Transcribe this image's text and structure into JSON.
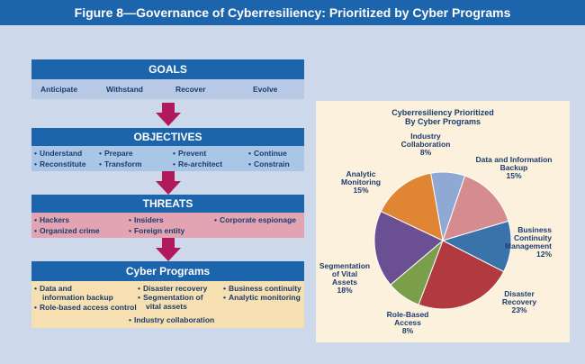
{
  "figure_title": "Figure 8—Governance of Cyberresiliency: Prioritized by Cyber Programs",
  "colors": {
    "header_blue": "#1c64ac",
    "goals_band": "#b7c9e4",
    "objectives_band": "#a9c6e6",
    "threats_band": "#e2a3b3",
    "programs_band": "#f6dfb0",
    "arrow": "#b2195b",
    "pie_panel": "#fbf1dd"
  },
  "goals": {
    "heading": "GOALS",
    "items": [
      "Anticipate",
      "Withstand",
      "Recover",
      "Evolve"
    ]
  },
  "objectives": {
    "heading": "OBJECTIVES",
    "items": [
      "Understand",
      "Prepare",
      "Prevent",
      "Continue",
      "Reconstitute",
      "Transform",
      "Re-architect",
      "Constrain"
    ]
  },
  "threats": {
    "heading": "THREATS",
    "items": [
      "Hackers",
      "Insiders",
      "Corporate espionage",
      "Organized crime",
      "Foreign entity"
    ]
  },
  "programs": {
    "heading": "Cyber Programs",
    "items": [
      "Data and",
      "information backup",
      "Disaster recovery",
      "Business continuity",
      "Segmentation of",
      "vital assets",
      "Analytic monitoring",
      "Role-based access control",
      "Industry collaboration"
    ]
  },
  "chart_data": {
    "type": "pie",
    "title_lines": [
      "Cyberresiliency Prioritized",
      "By Cyber Programs"
    ],
    "slices": [
      {
        "label_lines": [
          "Industry",
          "Collaboration",
          "8%"
        ],
        "value": 8,
        "color": "#8fa9d4"
      },
      {
        "label_lines": [
          "Data and Information",
          "Backup",
          "15%"
        ],
        "value": 15,
        "color": "#d58c8e"
      },
      {
        "label_lines": [
          "Business",
          "Continuity",
          "Management",
          "12%"
        ],
        "value": 12,
        "color": "#3a72aa"
      },
      {
        "label_lines": [
          "Disaster",
          "Recovery",
          "23%"
        ],
        "value": 23,
        "color": "#b03a3d"
      },
      {
        "label_lines": [
          "Role-Based",
          "Access",
          "8%"
        ],
        "value": 8,
        "color": "#7a9e4a"
      },
      {
        "label_lines": [
          "Segmentation",
          "of Vital",
          "Assets",
          "18%"
        ],
        "value": 18,
        "color": "#6a4f93"
      },
      {
        "label_lines": [
          "Analytic",
          "Monitoring",
          "15%"
        ],
        "value": 15,
        "color": "#df8534"
      }
    ]
  }
}
